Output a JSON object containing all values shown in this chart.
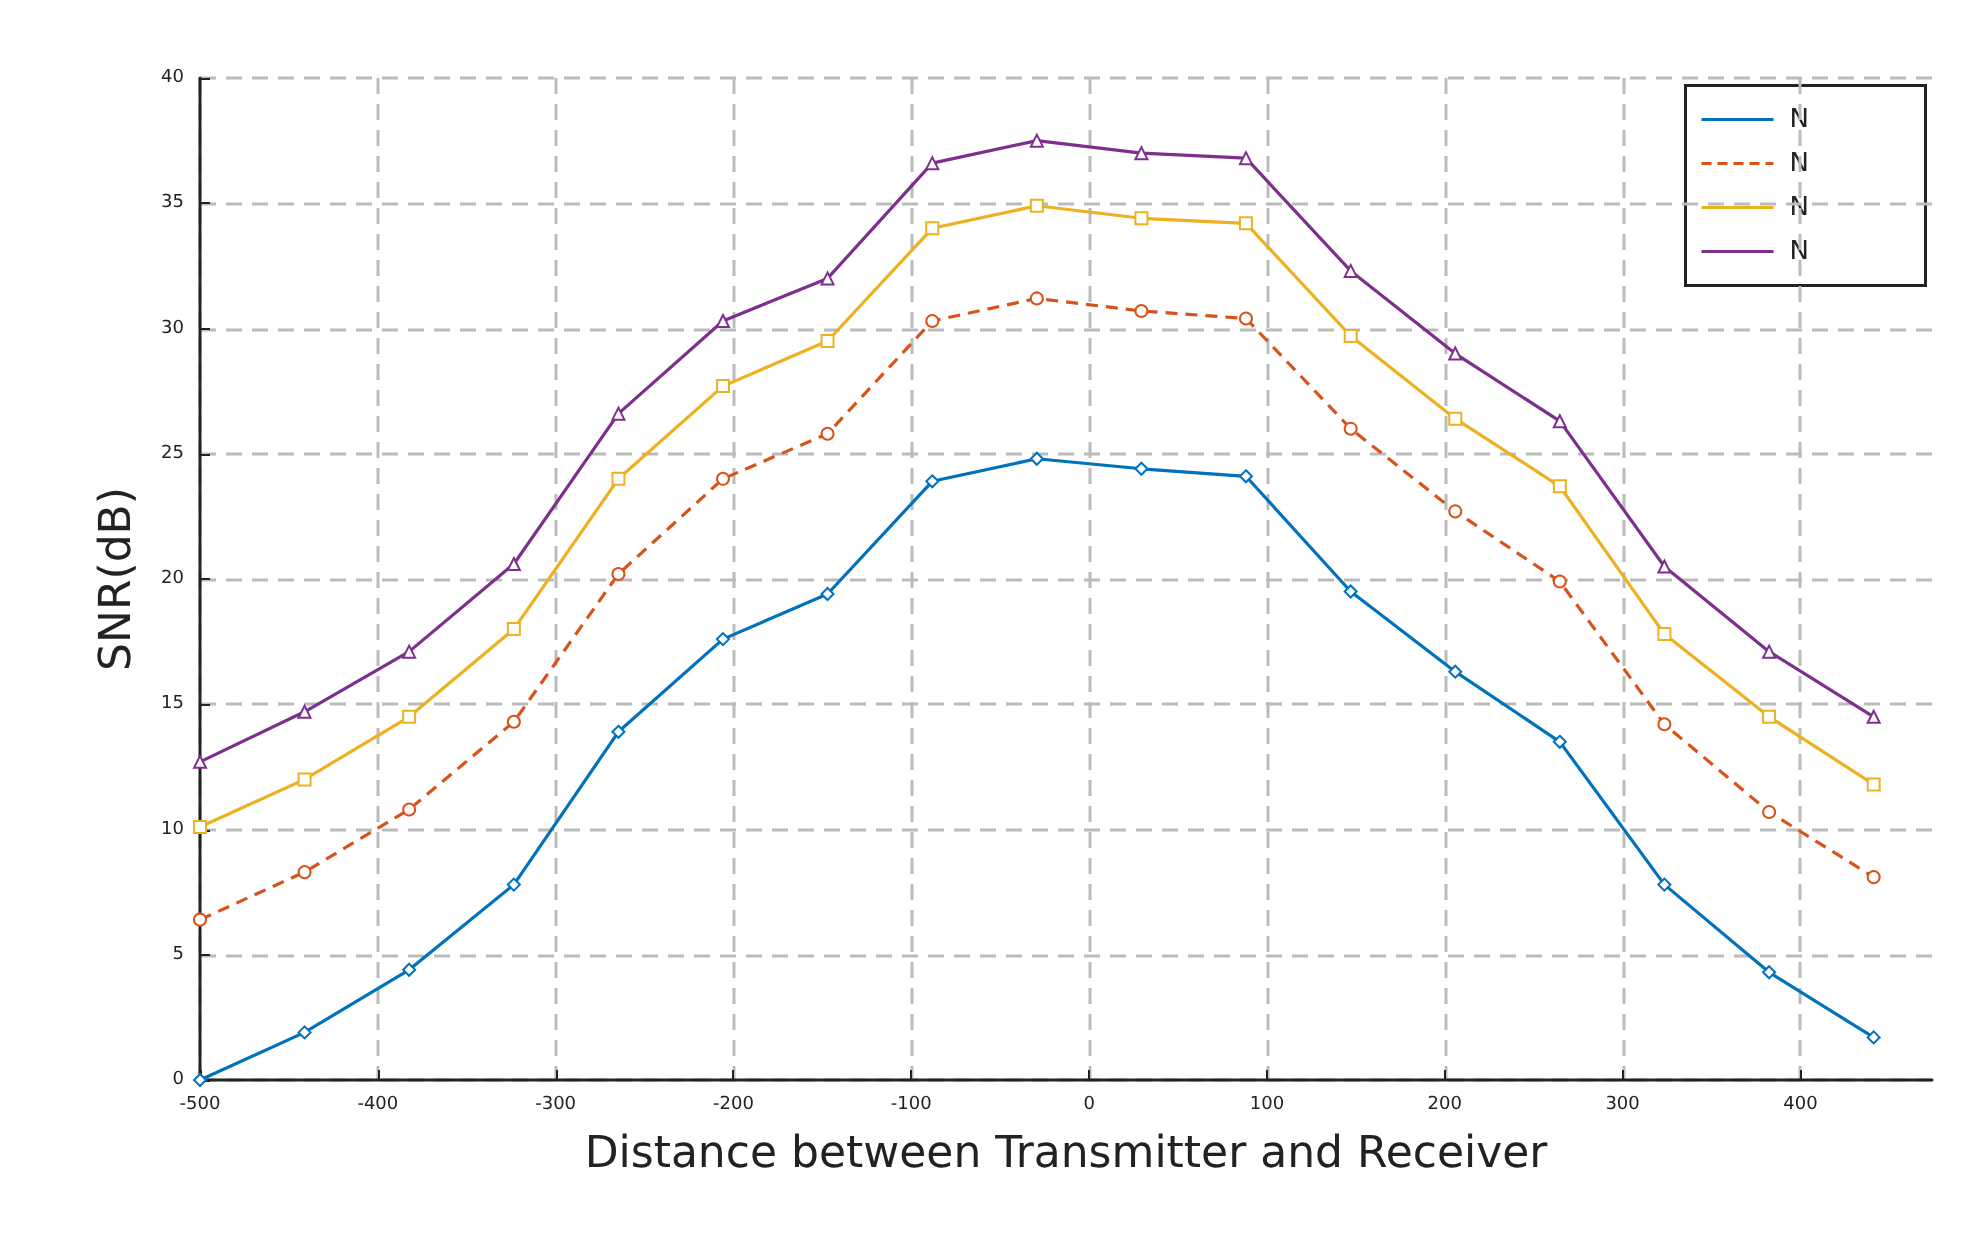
{
  "chart_data": {
    "type": "line",
    "xlabel": "Distance between Transmitter and Receiver",
    "ylabel": "SNR(dB)",
    "x": [
      -500,
      -441.2,
      -382.4,
      -323.5,
      -264.7,
      -205.9,
      -147.1,
      -88.2,
      -29.4,
      29.4,
      88.2,
      147.1,
      205.9,
      264.7,
      323.5,
      382.4,
      441.2
    ],
    "series": [
      {
        "name": "N",
        "color": "#0072bd",
        "marker": "diamond",
        "line_style": "solid",
        "values": [
          0,
          1.9,
          4.4,
          7.8,
          13.9,
          17.6,
          19.4,
          23.9,
          24.8,
          24.4,
          24.1,
          19.5,
          16.3,
          13.5,
          7.8,
          4.3,
          1.7
        ]
      },
      {
        "name": "N",
        "color": "#d95319",
        "marker": "circle",
        "line_style": "dashed",
        "values": [
          6.4,
          8.3,
          10.8,
          14.3,
          20.2,
          24.0,
          25.8,
          30.3,
          31.2,
          30.7,
          30.4,
          26.0,
          22.7,
          19.9,
          14.2,
          10.7,
          8.1
        ]
      },
      {
        "name": "N",
        "color": "#edb120",
        "marker": "square",
        "line_style": "solid",
        "values": [
          10.1,
          12.0,
          14.5,
          18.0,
          24.0,
          27.7,
          29.5,
          34.0,
          34.9,
          34.4,
          34.2,
          29.7,
          26.4,
          23.7,
          17.8,
          14.5,
          11.8
        ]
      },
      {
        "name": "N",
        "color": "#7e2f8e",
        "marker": "triangle",
        "line_style": "solid",
        "values": [
          12.7,
          14.7,
          17.1,
          20.6,
          26.6,
          30.3,
          32.0,
          36.6,
          37.5,
          37.0,
          36.8,
          32.3,
          29.0,
          26.3,
          20.5,
          17.1,
          14.5
        ]
      }
    ],
    "xlim": [
      -500,
      474
    ],
    "xticks": [
      -500,
      -400,
      -300,
      -200,
      -100,
      0,
      100,
      200,
      300,
      400
    ],
    "ylim": [
      0,
      40
    ],
    "yticks": [
      0,
      5,
      10,
      15,
      20,
      25,
      30,
      35,
      40
    ],
    "grid": true,
    "legend": "top right"
  }
}
